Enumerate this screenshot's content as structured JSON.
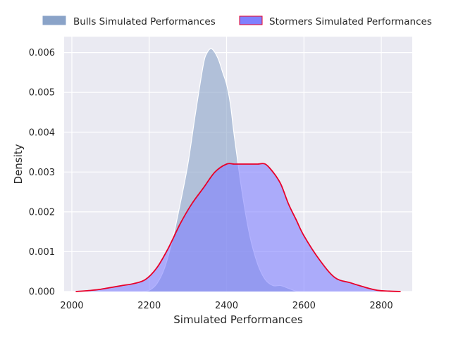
{
  "chart_data": {
    "type": "area",
    "title": "",
    "xlabel": "Simulated Performances",
    "ylabel": "Density",
    "xlim": [
      1980,
      2880
    ],
    "ylim": [
      0,
      0.0064
    ],
    "grid": true,
    "legend_position": "top",
    "x_ticks": [
      2000,
      2200,
      2400,
      2600,
      2800
    ],
    "x_tick_labels": [
      "2000",
      "2200",
      "2400",
      "2600",
      "2800"
    ],
    "y_ticks": [
      0,
      0.001,
      0.002,
      0.003,
      0.004,
      0.005,
      0.006
    ],
    "y_tick_labels": [
      "0.000",
      "0.001",
      "0.002",
      "0.003",
      "0.004",
      "0.005",
      "0.006"
    ],
    "series": [
      {
        "name": "Bulls Simulated Performances",
        "fill_color": "#8aa3c8",
        "fill_opacity": 0.6,
        "line_color": "#ffffff",
        "x": [
          2180,
          2200,
          2220,
          2240,
          2260,
          2280,
          2300,
          2320,
          2340,
          2350,
          2360,
          2370,
          2380,
          2390,
          2400,
          2410,
          2420,
          2440,
          2460,
          2480,
          2500,
          2520,
          2540,
          2560,
          2580,
          2600
        ],
        "y": [
          0.0,
          3e-05,
          0.0002,
          0.0006,
          0.0013,
          0.0022,
          0.0032,
          0.0045,
          0.0057,
          0.006,
          0.0061,
          0.006,
          0.0058,
          0.0055,
          0.0052,
          0.0047,
          0.0039,
          0.0025,
          0.0014,
          0.0007,
          0.0003,
          0.00015,
          0.00015,
          8e-05,
          1e-05,
          0.0
        ]
      },
      {
        "name": "Stormers Simulated Performances",
        "fill_color": "#8080ff",
        "fill_opacity": 0.6,
        "line_color": "#e8002a",
        "x": [
          2010,
          2040,
          2070,
          2100,
          2130,
          2160,
          2190,
          2220,
          2250,
          2280,
          2310,
          2340,
          2370,
          2400,
          2420,
          2440,
          2460,
          2480,
          2500,
          2520,
          2540,
          2560,
          2580,
          2600,
          2640,
          2680,
          2720,
          2760,
          2790,
          2820,
          2850
        ],
        "y": [
          0.0,
          2e-05,
          5e-05,
          0.0001,
          0.00015,
          0.0002,
          0.0003,
          0.0006,
          0.0011,
          0.0017,
          0.0022,
          0.0026,
          0.003,
          0.0032,
          0.0032,
          0.0032,
          0.0032,
          0.0032,
          0.0032,
          0.003,
          0.0027,
          0.0022,
          0.0018,
          0.0014,
          0.0008,
          0.00035,
          0.00022,
          0.0001,
          3e-05,
          1e-05,
          0.0
        ]
      }
    ]
  }
}
